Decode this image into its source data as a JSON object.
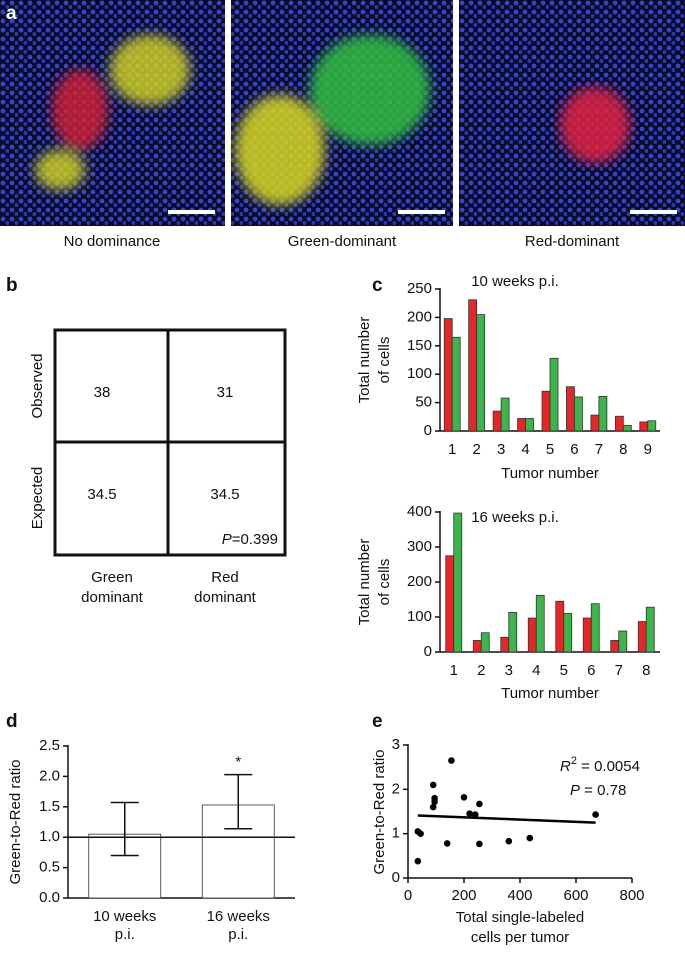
{
  "panel_a": {
    "label": "a",
    "captions": [
      "No dominance",
      "Green-dominant",
      "Red-dominant"
    ]
  },
  "panel_b": {
    "label": "b",
    "rows": [
      "Observed",
      "Expected"
    ],
    "columns": [
      [
        "Green",
        "dominant"
      ],
      [
        "Red",
        "dominant"
      ]
    ],
    "cells": [
      [
        38,
        31
      ],
      [
        34.5,
        34.5
      ]
    ],
    "p_value": {
      "italic": "P",
      "text": "=0.399"
    }
  },
  "chart_data": [
    {
      "type": "bar",
      "panel_label": "c",
      "title": "10 weeks p.i.",
      "ylabel": [
        "Total number",
        "of cells"
      ],
      "xlabel": "Tumor number",
      "categories": [
        "1",
        "2",
        "3",
        "4",
        "5",
        "6",
        "7",
        "8",
        "9"
      ],
      "series": [
        {
          "color": "#e8262a",
          "values": [
            198,
            231,
            35,
            22,
            70,
            78,
            28,
            26,
            16
          ]
        },
        {
          "color": "#3cb54a",
          "values": [
            165,
            205,
            58,
            22,
            128,
            60,
            61,
            10,
            18
          ]
        }
      ],
      "ylim": [
        0,
        250
      ],
      "yticks": [
        0,
        50,
        100,
        150,
        200,
        250
      ]
    },
    {
      "type": "bar",
      "title": "16 weeks p.i.",
      "ylabel": [
        "Total number",
        "of cells"
      ],
      "xlabel": "Tumor number",
      "categories": [
        "1",
        "2",
        "3",
        "4",
        "5",
        "6",
        "7",
        "8"
      ],
      "series": [
        {
          "color": "#e8262a",
          "values": [
            275,
            33,
            42,
            97,
            145,
            97,
            33,
            87
          ]
        },
        {
          "color": "#3cb54a",
          "values": [
            397,
            55,
            113,
            162,
            110,
            138,
            60,
            128
          ]
        }
      ],
      "ylim": [
        0,
        400
      ],
      "yticks": [
        0,
        100,
        200,
        300,
        400
      ]
    },
    {
      "type": "bar",
      "panel_label": "d",
      "ylabel": [
        "Green-to-Red ratio"
      ],
      "categories": [
        [
          "10 weeks",
          "p.i."
        ],
        [
          "16 weeks",
          "p.i."
        ]
      ],
      "values": [
        1.05,
        1.53
      ],
      "errors_minus": [
        0.35,
        0.39
      ],
      "errors_plus": [
        0.52,
        0.5
      ],
      "significance": [
        null,
        "*"
      ],
      "color": "#ffffff",
      "reference_line": 1,
      "ylim": [
        0,
        2.5
      ],
      "yticks": [
        {
          "value": 0,
          "label": "0.0"
        },
        0.5,
        {
          "value": 1,
          "label": "1.0"
        },
        1.5,
        {
          "value": 2,
          "label": "2.0"
        },
        2.5
      ]
    },
    {
      "type": "scatter",
      "panel_label": "e",
      "ylabel": [
        "Green-to-Red ratio"
      ],
      "xlabel": [
        "Total single-labeled",
        "cells per tumor"
      ],
      "x": [
        35,
        35,
        45,
        90,
        90,
        95,
        95,
        140,
        155,
        200,
        220,
        240,
        255,
        255,
        360,
        435,
        670
      ],
      "y": [
        0.38,
        1.05,
        1.0,
        1.6,
        2.1,
        1.8,
        1.72,
        0.78,
        2.65,
        1.82,
        1.45,
        1.43,
        1.67,
        0.77,
        0.83,
        0.9,
        1.43
      ],
      "color": "#000000",
      "fit_line": {
        "x": [
          35,
          670
        ],
        "y": [
          1.41,
          1.25
        ]
      },
      "annotations": [
        {
          "italic": "R",
          "sup": "2",
          "text": " = 0.0054"
        },
        {
          "italic": "P",
          "text": " = 0.78"
        }
      ],
      "xlim": [
        0,
        800
      ],
      "xticks": [
        0,
        200,
        400,
        600,
        800
      ],
      "ylim": [
        0,
        3
      ],
      "yticks": [
        0,
        1,
        2,
        3
      ]
    }
  ]
}
